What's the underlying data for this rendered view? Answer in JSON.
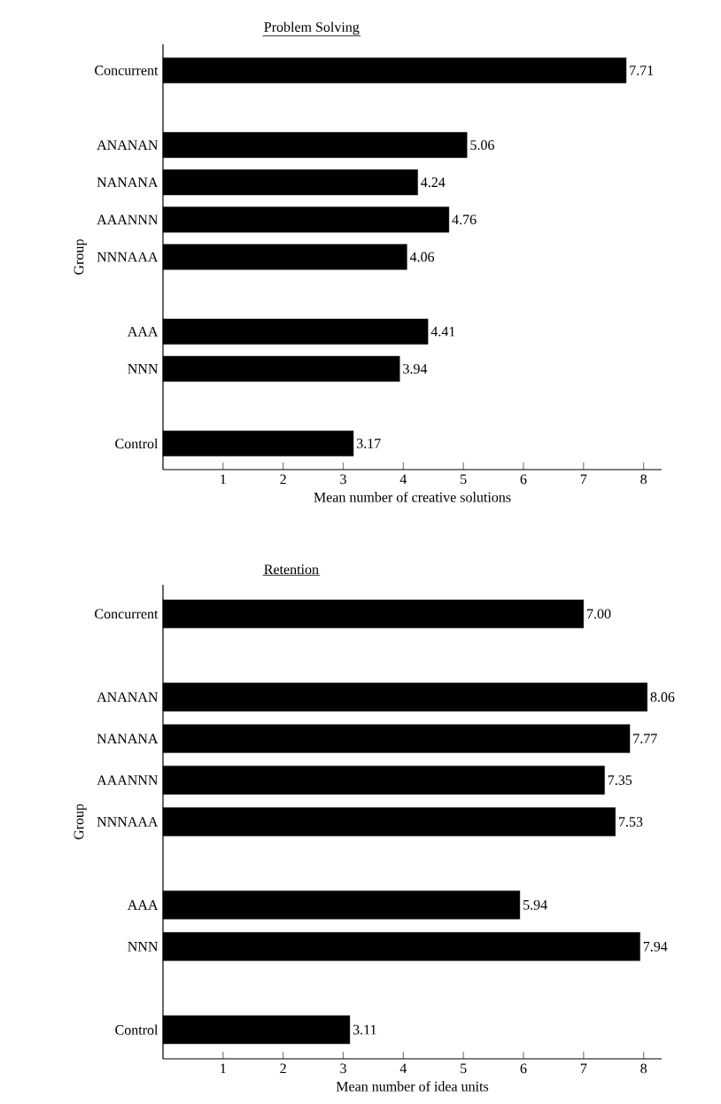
{
  "chart_data": [
    {
      "type": "bar",
      "orientation": "horizontal",
      "title": "Problem Solving",
      "xlabel": "Mean number of creative solutions",
      "ylabel": "Group",
      "color": "#000000",
      "categories": [
        "Concurrent",
        null,
        "ANANAN",
        "NANANA",
        "AAANNN",
        "NNNAAA",
        null,
        "AAA",
        "NNN",
        null,
        "Control"
      ],
      "values": [
        7.71,
        null,
        5.06,
        4.24,
        4.76,
        4.06,
        null,
        4.41,
        3.94,
        null,
        3.17
      ],
      "value_labels": [
        "7.71",
        null,
        "5.06",
        "4.24",
        "4.76",
        "4.06",
        null,
        "4.41",
        "3.94",
        null,
        "3.17"
      ],
      "xlim": [
        0,
        8.3
      ],
      "xticks": [
        1,
        2,
        3,
        4,
        5,
        6,
        7,
        8
      ]
    },
    {
      "type": "bar",
      "orientation": "horizontal",
      "title": "Retention",
      "xlabel": "Mean number of idea units",
      "ylabel": "Group",
      "color": "#000000",
      "categories": [
        "Concurrent",
        null,
        "ANANAN",
        "NANANA",
        "AAANNN",
        "NNNAAA",
        null,
        "AAA",
        "NNN",
        null,
        "Control"
      ],
      "values": [
        7.0,
        null,
        8.06,
        7.77,
        7.35,
        7.53,
        null,
        5.94,
        7.94,
        null,
        3.11
      ],
      "value_labels": [
        "7.00",
        null,
        "8.06",
        "7.77",
        "7.35",
        "7.53",
        null,
        "5.94",
        "7.94",
        null,
        "3.11"
      ],
      "xlim": [
        0,
        8.3
      ],
      "xticks": [
        1,
        2,
        3,
        4,
        5,
        6,
        7,
        8
      ]
    }
  ]
}
